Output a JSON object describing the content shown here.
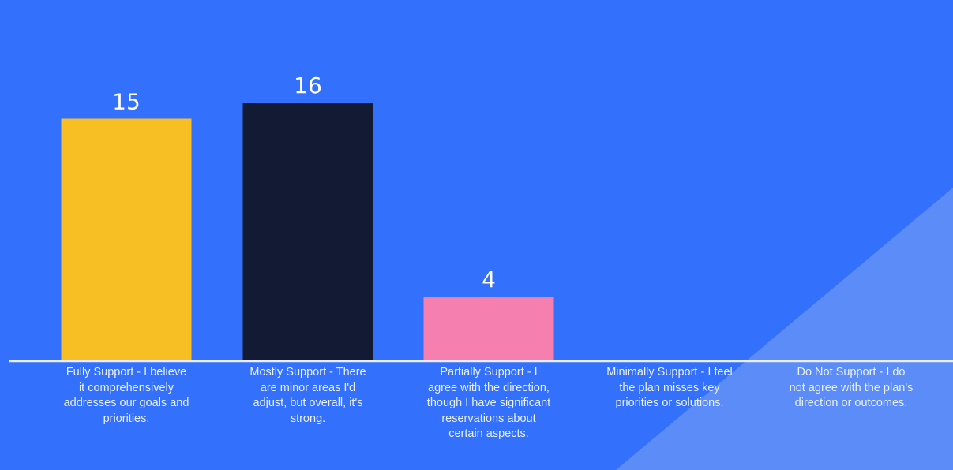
{
  "colors": {
    "background": "#3370fb",
    "background_accent": "#5b8cf8",
    "baseline": "#e9eef8",
    "text": "#ffffff"
  },
  "chart_data": {
    "type": "bar",
    "title": "",
    "xlabel": "",
    "ylabel": "",
    "ylim": [
      0,
      16
    ],
    "grid": false,
    "legend": "none",
    "categories": [
      "Fully Support - I believe it comprehensively addresses our goals and priorities.",
      "Mostly Support - There are minor areas I'd adjust, but overall, it's strong.",
      "Partially Support - I agree with the direction, though I have significant reservations about certain aspects.",
      "Minimally Support - I feel the plan misses key priorities or solutions.",
      "Do Not Support - I do not agree with the plan's direction or outcomes."
    ],
    "values": [
      15,
      16,
      4,
      0,
      0
    ],
    "value_labels": [
      "15",
      "16",
      "4",
      "",
      ""
    ],
    "bar_colors": [
      "#f8bf24",
      "#131a33",
      "#f57fae",
      "#f57fae",
      "#f57fae"
    ]
  }
}
